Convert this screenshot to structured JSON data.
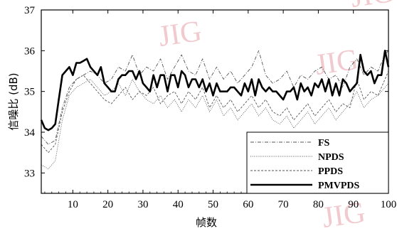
{
  "chart_data": {
    "type": "line",
    "xlabel": "帧数",
    "ylabel": "信噪比 (dB)",
    "xlim": [
      1,
      100
    ],
    "ylim": [
      32.5,
      37
    ],
    "xticks": [
      10,
      20,
      30,
      40,
      50,
      60,
      70,
      80,
      90,
      100
    ],
    "yticks": [
      33,
      34,
      35,
      36,
      37
    ],
    "legend_position": "bottom-right",
    "watermark": "JIG",
    "series": [
      {
        "name": "FS",
        "style": "dash-dot",
        "points": [
          [
            1,
            33.9
          ],
          [
            3,
            33.7
          ],
          [
            5,
            33.8
          ],
          [
            7,
            34.6
          ],
          [
            9,
            35.1
          ],
          [
            11,
            35.3
          ],
          [
            13,
            35.4
          ],
          [
            15,
            35.5
          ],
          [
            17,
            35.4
          ],
          [
            19,
            35.2
          ],
          [
            21,
            35.3
          ],
          [
            23,
            35.6
          ],
          [
            25,
            35.5
          ],
          [
            27,
            35.9
          ],
          [
            29,
            35.4
          ],
          [
            31,
            35.6
          ],
          [
            33,
            35.5
          ],
          [
            35,
            35.8
          ],
          [
            37,
            35.3
          ],
          [
            39,
            35.6
          ],
          [
            41,
            35.9
          ],
          [
            43,
            35.5
          ],
          [
            45,
            35.4
          ],
          [
            47,
            35.8
          ],
          [
            49,
            35.3
          ],
          [
            51,
            35.6
          ],
          [
            53,
            35.3
          ],
          [
            55,
            35.5
          ],
          [
            57,
            35.2
          ],
          [
            59,
            35.4
          ],
          [
            61,
            35.6
          ],
          [
            63,
            36.0
          ],
          [
            65,
            35.4
          ],
          [
            67,
            35.2
          ],
          [
            69,
            35.3
          ],
          [
            71,
            35.5
          ],
          [
            73,
            35.1
          ],
          [
            75,
            35.4
          ],
          [
            77,
            35.3
          ],
          [
            79,
            35.5
          ],
          [
            81,
            35.6
          ],
          [
            83,
            35.3
          ],
          [
            85,
            35.4
          ],
          [
            87,
            35.1
          ],
          [
            89,
            35.6
          ],
          [
            91,
            35.8
          ],
          [
            93,
            35.4
          ],
          [
            95,
            35.6
          ],
          [
            97,
            35.5
          ],
          [
            99,
            35.9
          ],
          [
            100,
            36.0
          ]
        ]
      },
      {
        "name": "NPDS",
        "style": "dotted",
        "points": [
          [
            1,
            33.2
          ],
          [
            3,
            33.1
          ],
          [
            5,
            33.3
          ],
          [
            7,
            34.3
          ],
          [
            9,
            34.9
          ],
          [
            11,
            35.1
          ],
          [
            13,
            35.2
          ],
          [
            15,
            35.3
          ],
          [
            17,
            35.1
          ],
          [
            19,
            34.9
          ],
          [
            21,
            35.0
          ],
          [
            23,
            35.2
          ],
          [
            25,
            34.9
          ],
          [
            27,
            35.3
          ],
          [
            29,
            35.0
          ],
          [
            31,
            34.8
          ],
          [
            33,
            34.7
          ],
          [
            35,
            34.9
          ],
          [
            37,
            34.6
          ],
          [
            39,
            34.8
          ],
          [
            41,
            34.5
          ],
          [
            43,
            34.8
          ],
          [
            45,
            34.6
          ],
          [
            47,
            34.9
          ],
          [
            49,
            34.5
          ],
          [
            51,
            34.8
          ],
          [
            53,
            34.4
          ],
          [
            55,
            34.6
          ],
          [
            57,
            34.3
          ],
          [
            59,
            34.5
          ],
          [
            61,
            34.7
          ],
          [
            63,
            34.4
          ],
          [
            65,
            34.6
          ],
          [
            67,
            34.3
          ],
          [
            69,
            34.2
          ],
          [
            71,
            34.4
          ],
          [
            73,
            34.1
          ],
          [
            75,
            34.3
          ],
          [
            77,
            34.5
          ],
          [
            79,
            34.2
          ],
          [
            81,
            34.4
          ],
          [
            83,
            34.6
          ],
          [
            85,
            34.3
          ],
          [
            87,
            34.5
          ],
          [
            89,
            34.7
          ],
          [
            91,
            35.0
          ],
          [
            93,
            34.6
          ],
          [
            95,
            34.8
          ],
          [
            97,
            34.9
          ],
          [
            99,
            35.1
          ],
          [
            100,
            35.2
          ]
        ]
      },
      {
        "name": "PPDS",
        "style": "dashed",
        "points": [
          [
            1,
            33.7
          ],
          [
            3,
            33.5
          ],
          [
            5,
            33.7
          ],
          [
            7,
            34.5
          ],
          [
            9,
            35.0
          ],
          [
            11,
            35.3
          ],
          [
            13,
            35.4
          ],
          [
            15,
            35.2
          ],
          [
            17,
            35.0
          ],
          [
            19,
            34.8
          ],
          [
            21,
            34.7
          ],
          [
            23,
            34.9
          ],
          [
            25,
            35.1
          ],
          [
            27,
            34.8
          ],
          [
            29,
            35.0
          ],
          [
            31,
            34.9
          ],
          [
            33,
            35.1
          ],
          [
            35,
            34.7
          ],
          [
            37,
            34.9
          ],
          [
            39,
            35.0
          ],
          [
            41,
            34.7
          ],
          [
            43,
            35.0
          ],
          [
            45,
            34.8
          ],
          [
            47,
            35.1
          ],
          [
            49,
            34.6
          ],
          [
            51,
            34.9
          ],
          [
            53,
            34.6
          ],
          [
            55,
            34.8
          ],
          [
            57,
            34.5
          ],
          [
            59,
            34.7
          ],
          [
            61,
            34.9
          ],
          [
            63,
            34.6
          ],
          [
            65,
            34.8
          ],
          [
            67,
            34.5
          ],
          [
            69,
            34.4
          ],
          [
            71,
            34.6
          ],
          [
            73,
            34.3
          ],
          [
            75,
            34.5
          ],
          [
            77,
            34.7
          ],
          [
            79,
            34.4
          ],
          [
            81,
            34.6
          ],
          [
            83,
            34.8
          ],
          [
            85,
            34.5
          ],
          [
            87,
            34.7
          ],
          [
            89,
            34.6
          ],
          [
            91,
            35.3
          ],
          [
            93,
            34.8
          ],
          [
            95,
            35.0
          ],
          [
            97,
            34.9
          ],
          [
            99,
            35.3
          ],
          [
            100,
            35.5
          ]
        ]
      },
      {
        "name": "PMVPDS",
        "style": "solid-thick",
        "points": [
          [
            1,
            34.3
          ],
          [
            2,
            34.1
          ],
          [
            3,
            34.05
          ],
          [
            4,
            34.1
          ],
          [
            5,
            34.2
          ],
          [
            6,
            34.8
          ],
          [
            7,
            35.4
          ],
          [
            8,
            35.5
          ],
          [
            9,
            35.6
          ],
          [
            10,
            35.4
          ],
          [
            11,
            35.7
          ],
          [
            12,
            35.7
          ],
          [
            13,
            35.75
          ],
          [
            14,
            35.8
          ],
          [
            15,
            35.6
          ],
          [
            16,
            35.5
          ],
          [
            17,
            35.4
          ],
          [
            18,
            35.6
          ],
          [
            19,
            35.2
          ],
          [
            20,
            35.1
          ],
          [
            21,
            35.0
          ],
          [
            22,
            35.0
          ],
          [
            23,
            35.3
          ],
          [
            24,
            35.4
          ],
          [
            25,
            35.4
          ],
          [
            26,
            35.5
          ],
          [
            27,
            35.5
          ],
          [
            28,
            35.3
          ],
          [
            29,
            35.5
          ],
          [
            30,
            35.2
          ],
          [
            31,
            35.1
          ],
          [
            32,
            35.0
          ],
          [
            33,
            35.4
          ],
          [
            34,
            35.1
          ],
          [
            35,
            35.4
          ],
          [
            36,
            35.4
          ],
          [
            37,
            35.0
          ],
          [
            38,
            35.4
          ],
          [
            39,
            35.4
          ],
          [
            40,
            35.1
          ],
          [
            41,
            35.5
          ],
          [
            42,
            35.4
          ],
          [
            43,
            35.1
          ],
          [
            44,
            35.3
          ],
          [
            45,
            35.3
          ],
          [
            46,
            35.1
          ],
          [
            47,
            35.3
          ],
          [
            48,
            35.0
          ],
          [
            49,
            35.2
          ],
          [
            50,
            34.9
          ],
          [
            51,
            35.2
          ],
          [
            52,
            35.0
          ],
          [
            53,
            35.0
          ],
          [
            54,
            35.0
          ],
          [
            55,
            35.1
          ],
          [
            56,
            35.1
          ],
          [
            57,
            35.0
          ],
          [
            58,
            34.9
          ],
          [
            59,
            35.2
          ],
          [
            60,
            35.0
          ],
          [
            61,
            35.3
          ],
          [
            62,
            34.9
          ],
          [
            63,
            35.3
          ],
          [
            64,
            35.1
          ],
          [
            65,
            35.0
          ],
          [
            66,
            35.1
          ],
          [
            67,
            35.0
          ],
          [
            68,
            35.0
          ],
          [
            69,
            34.9
          ],
          [
            70,
            34.8
          ],
          [
            71,
            35.0
          ],
          [
            72,
            35.0
          ],
          [
            73,
            35.1
          ],
          [
            74,
            34.8
          ],
          [
            75,
            35.2
          ],
          [
            76,
            35.0
          ],
          [
            77,
            35.1
          ],
          [
            78,
            34.9
          ],
          [
            79,
            35.2
          ],
          [
            80,
            35.1
          ],
          [
            81,
            35.3
          ],
          [
            82,
            35.0
          ],
          [
            83,
            35.3
          ],
          [
            84,
            34.9
          ],
          [
            85,
            35.2
          ],
          [
            86,
            34.9
          ],
          [
            87,
            35.3
          ],
          [
            88,
            35.2
          ],
          [
            89,
            35.0
          ],
          [
            90,
            35.1
          ],
          [
            91,
            35.2
          ],
          [
            92,
            35.9
          ],
          [
            93,
            35.5
          ],
          [
            94,
            35.4
          ],
          [
            95,
            35.5
          ],
          [
            96,
            35.2
          ],
          [
            97,
            35.4
          ],
          [
            98,
            35.4
          ],
          [
            99,
            36.0
          ],
          [
            100,
            35.6
          ]
        ]
      }
    ]
  }
}
